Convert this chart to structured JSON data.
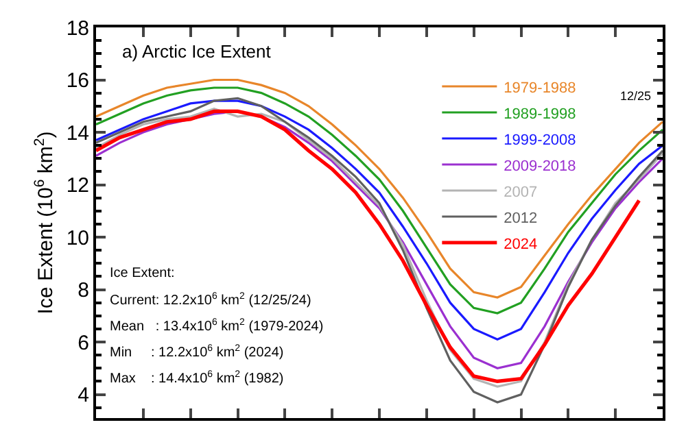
{
  "chart_data": {
    "type": "line",
    "title": "a) Arctic Ice Extent",
    "ylabel": "Ice Extent (10$^{6}$ km$^{2}$)",
    "categories": [
      null,
      null,
      null,
      null,
      null,
      null,
      null,
      null,
      null,
      null,
      null,
      null,
      null,
      null,
      null,
      null,
      null,
      null,
      null,
      null,
      null,
      null,
      null,
      null,
      null
    ],
    "ylim": [
      3.1,
      18
    ],
    "yticks": [
      4,
      6,
      8,
      10,
      12,
      14,
      16,
      18
    ],
    "tick_labels": "y",
    "grid": false,
    "legend": "top right",
    "marker": "none",
    "line_style": "solid",
    "series": [
      {
        "name": "1979-1988",
        "color": "#e8862a",
        "values": [
          14.6,
          15.0,
          15.4,
          15.7,
          15.85,
          16.0,
          16.0,
          15.8,
          15.5,
          15.0,
          14.3,
          13.5,
          12.6,
          11.5,
          10.2,
          8.8,
          7.9,
          7.7,
          8.1,
          9.3,
          10.5,
          11.6,
          12.6,
          13.6,
          14.4
        ]
      },
      {
        "name": "1989-1998",
        "color": "#22a022",
        "values": [
          14.3,
          14.7,
          15.1,
          15.4,
          15.6,
          15.7,
          15.7,
          15.5,
          15.1,
          14.6,
          13.9,
          13.1,
          12.2,
          11.0,
          9.6,
          8.2,
          7.3,
          7.1,
          7.5,
          8.8,
          10.2,
          11.3,
          12.4,
          13.3,
          14.1
        ]
      },
      {
        "name": "1999-2008",
        "color": "#1a1aff",
        "values": [
          13.7,
          14.1,
          14.5,
          14.8,
          15.1,
          15.2,
          15.2,
          15.0,
          14.6,
          14.1,
          13.4,
          12.6,
          11.7,
          10.4,
          9.0,
          7.5,
          6.5,
          6.1,
          6.5,
          7.9,
          9.4,
          10.7,
          11.8,
          12.8,
          13.5
        ]
      },
      {
        "name": "2009-2018",
        "color": "#9b30d0",
        "values": [
          13.1,
          13.6,
          14.0,
          14.3,
          14.5,
          14.7,
          14.8,
          14.6,
          14.2,
          13.6,
          12.9,
          12.0,
          11.1,
          9.8,
          8.2,
          6.6,
          5.4,
          5.0,
          5.2,
          6.6,
          8.3,
          9.8,
          11.1,
          12.1,
          13.0
        ]
      },
      {
        "name": "2007",
        "color": "#b4b4b4",
        "values": [
          13.4,
          13.9,
          14.3,
          14.5,
          14.6,
          14.9,
          14.6,
          14.7,
          14.4,
          13.7,
          13.0,
          12.1,
          11.2,
          9.7,
          7.6,
          5.7,
          4.6,
          4.3,
          4.5,
          6.0,
          8.2,
          9.9,
          11.3,
          12.2,
          13.2
        ]
      },
      {
        "name": "2012",
        "color": "#606060",
        "values": [
          13.6,
          14.0,
          14.4,
          14.6,
          14.8,
          15.2,
          15.3,
          15.0,
          14.4,
          13.8,
          13.1,
          12.3,
          11.3,
          9.5,
          7.3,
          5.3,
          4.1,
          3.7,
          4.0,
          5.9,
          8.1,
          9.9,
          11.2,
          12.3,
          13.3
        ]
      },
      {
        "name": "2024",
        "color": "#ff0000",
        "values": [
          13.3,
          13.8,
          14.1,
          14.4,
          14.5,
          14.8,
          14.8,
          14.6,
          14.1,
          13.3,
          12.6,
          11.7,
          10.5,
          9.1,
          7.4,
          5.8,
          4.7,
          4.5,
          4.6,
          5.9,
          7.4,
          8.6,
          10.0,
          11.4,
          null
        ]
      }
    ],
    "annotations": [
      "12/25",
      "Ice Extent:",
      "Current: 12.2x10$^{6}$ km$^{2}$ (12/25/24)",
      "Mean   : 13.4x10$^{6}$ km$^{2}$ (1979-2024)",
      "Min     : 12.2x10$^{6}$ km$^{2}$ (2024)",
      "Max    : 14.4x10$^{6}$ km$^{2}$ (1982)"
    ]
  }
}
